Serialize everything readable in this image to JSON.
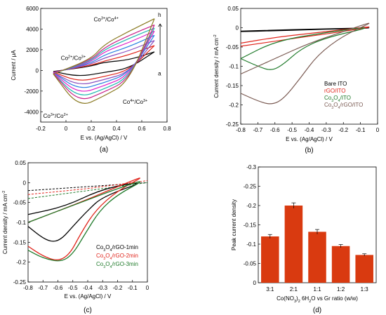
{
  "figure": {
    "panels": [
      "(a)",
      "(b)",
      "(c)",
      "(d)"
    ]
  },
  "colors": {
    "black": "#000000",
    "red": "#e0241b",
    "green": "#1f7a2a",
    "brown": "#7a5a52",
    "bar": "#d93a10",
    "blue": "#2a7fe0",
    "magenta": "#e020c8",
    "olive": "#8a7a22"
  },
  "chart_data": [
    {
      "panel": "a",
      "type": "line",
      "xlabel": "E vs. (Ag/AgCl) / V",
      "ylabel": "Current / μA",
      "xlim": [
        -0.2,
        0.8
      ],
      "ylim": [
        -5000,
        6000
      ],
      "xticks": [
        "-0.2",
        "0",
        "0.2",
        "0.4",
        "0.6",
        "0.8"
      ],
      "yticks": [
        "6000",
        "4000",
        "2000",
        "0",
        "-2000",
        "-4000"
      ],
      "annotations": [
        "Co3+/Co4+",
        "Co2+/Co3+",
        "Co4+/Co3+",
        "Co3+/Co2+",
        "h",
        "a"
      ],
      "series": [
        {
          "color": "#000000",
          "upper": [
            [
              -0.1,
              -100
            ],
            [
              0.2,
              400
            ],
            [
              0.3,
              800
            ],
            [
              0.5,
              1000
            ],
            [
              0.7,
              1800
            ]
          ],
          "lower": [
            [
              0.7,
              1800
            ],
            [
              0.5,
              200
            ],
            [
              0.3,
              -200
            ],
            [
              0.1,
              -600
            ],
            [
              -0.1,
              -100
            ]
          ]
        },
        {
          "color": "#e0241b",
          "upper": [
            [
              -0.1,
              -150
            ],
            [
              0.2,
              500
            ],
            [
              0.3,
              900
            ],
            [
              0.5,
              1500
            ],
            [
              0.7,
              2400
            ]
          ],
          "lower": [
            [
              0.7,
              2400
            ],
            [
              0.5,
              0
            ],
            [
              0.3,
              -600
            ],
            [
              0.1,
              -1100
            ],
            [
              -0.1,
              -150
            ]
          ]
        },
        {
          "color": "#8a4fc0",
          "upper": [
            [
              -0.1,
              -200
            ],
            [
              0.2,
              600
            ],
            [
              0.3,
              1200
            ],
            [
              0.5,
              1900
            ],
            [
              0.7,
              2900
            ]
          ],
          "lower": [
            [
              0.7,
              2900
            ],
            [
              0.5,
              -200
            ],
            [
              0.3,
              -900
            ],
            [
              0.1,
              -1500
            ],
            [
              -0.1,
              -200
            ]
          ]
        },
        {
          "color": "#2a7fe0",
          "upper": [
            [
              -0.1,
              -200
            ],
            [
              0.2,
              700
            ],
            [
              0.3,
              1500
            ],
            [
              0.5,
              2300
            ],
            [
              0.7,
              3400
            ]
          ],
          "lower": [
            [
              0.7,
              3400
            ],
            [
              0.5,
              -300
            ],
            [
              0.3,
              -1200
            ],
            [
              0.1,
              -1900
            ],
            [
              -0.1,
              -200
            ]
          ]
        },
        {
          "color": "#e020c8",
          "upper": [
            [
              -0.1,
              -250
            ],
            [
              0.2,
              800
            ],
            [
              0.3,
              1800
            ],
            [
              0.5,
              2700
            ],
            [
              0.7,
              3800
            ]
          ],
          "lower": [
            [
              0.7,
              3800
            ],
            [
              0.5,
              -500
            ],
            [
              0.3,
              -1500
            ],
            [
              0.1,
              -2300
            ],
            [
              -0.1,
              -250
            ]
          ]
        },
        {
          "color": "#20b8b0",
          "upper": [
            [
              -0.1,
              -300
            ],
            [
              0.2,
              900
            ],
            [
              0.3,
              2000
            ],
            [
              0.5,
              3100
            ],
            [
              0.7,
              4100
            ]
          ],
          "lower": [
            [
              0.7,
              4100
            ],
            [
              0.5,
              -700
            ],
            [
              0.3,
              -1800
            ],
            [
              0.1,
              -2700
            ],
            [
              -0.1,
              -300
            ]
          ]
        },
        {
          "color": "#c82088",
          "upper": [
            [
              -0.1,
              -300
            ],
            [
              0.2,
              1000
            ],
            [
              0.3,
              2200
            ],
            [
              0.5,
              3400
            ],
            [
              0.7,
              4400
            ]
          ],
          "lower": [
            [
              0.7,
              4400
            ],
            [
              0.5,
              -900
            ],
            [
              0.3,
              -2100
            ],
            [
              0.1,
              -3100
            ],
            [
              -0.1,
              -300
            ]
          ]
        },
        {
          "color": "#8a7a22",
          "upper": [
            [
              -0.1,
              -350
            ],
            [
              0.2,
              1100
            ],
            [
              0.3,
              2500
            ],
            [
              0.5,
              3800
            ],
            [
              0.7,
              5000
            ]
          ],
          "lower": [
            [
              0.7,
              5000
            ],
            [
              0.5,
              -1100
            ],
            [
              0.3,
              -2500
            ],
            [
              0.1,
              -3600
            ],
            [
              -0.1,
              -350
            ]
          ]
        }
      ]
    },
    {
      "panel": "b",
      "type": "line",
      "xlabel": "E vs. (Ag/AgCl) / V",
      "ylabel": "Current density / mA cm-2",
      "xlim": [
        -0.8,
        0
      ],
      "ylim": [
        -0.25,
        0.05
      ],
      "xticks": [
        "-0.8",
        "-0.7",
        "-0.6",
        "-0.5",
        "-0.4",
        "-0.3",
        "-0.2",
        "-0.1",
        "0"
      ],
      "yticks": [
        "0.05",
        "0",
        "-0.05",
        "-0.1",
        "-0.15",
        "-0.2",
        "-0.25"
      ],
      "legend": [
        "Bare ITO",
        "rGO/ITO",
        "Co3O4/ITO",
        "Co3O4/rGO/ITO"
      ],
      "series": [
        {
          "name": "Bare ITO",
          "color": "#000000",
          "points": [
            [
              -0.8,
              -0.01
            ],
            [
              -0.6,
              -0.008
            ],
            [
              -0.4,
              -0.005
            ],
            [
              -0.2,
              -0.003
            ],
            [
              0,
              0.0
            ],
            [
              -0.2,
              -0.002
            ],
            [
              -0.4,
              -0.004
            ],
            [
              -0.6,
              -0.006
            ],
            [
              -0.8,
              -0.009
            ]
          ]
        },
        {
          "name": "rGO/ITO",
          "color": "#e0241b",
          "points": [
            [
              -0.8,
              -0.048
            ],
            [
              -0.6,
              -0.035
            ],
            [
              -0.4,
              -0.022
            ],
            [
              -0.2,
              -0.01
            ],
            [
              0,
              0.005
            ],
            [
              -0.2,
              -0.005
            ],
            [
              -0.4,
              -0.015
            ],
            [
              -0.6,
              -0.025
            ],
            [
              -0.8,
              -0.04
            ]
          ]
        },
        {
          "name": "Co3O4/ITO",
          "color": "#1f7a2a",
          "points": [
            [
              -0.8,
              -0.08
            ],
            [
              -0.7,
              -0.1
            ],
            [
              -0.62,
              -0.112
            ],
            [
              -0.55,
              -0.095
            ],
            [
              -0.45,
              -0.055
            ],
            [
              -0.3,
              -0.025
            ],
            [
              0,
              0.005
            ],
            [
              -0.3,
              -0.012
            ],
            [
              -0.6,
              -0.035
            ],
            [
              -0.8,
              -0.08
            ]
          ]
        },
        {
          "name": "Co3O4/rGO/ITO",
          "color": "#7a5a52",
          "points": [
            [
              -0.8,
              -0.17
            ],
            [
              -0.7,
              -0.19
            ],
            [
              -0.62,
              -0.2
            ],
            [
              -0.55,
              -0.185
            ],
            [
              -0.45,
              -0.13
            ],
            [
              -0.35,
              -0.07
            ],
            [
              -0.2,
              -0.02
            ],
            [
              0,
              0.02
            ],
            [
              -0.2,
              -0.01
            ],
            [
              -0.4,
              -0.04
            ],
            [
              -0.6,
              -0.08
            ],
            [
              -0.8,
              -0.12
            ]
          ]
        }
      ]
    },
    {
      "panel": "c",
      "type": "line",
      "xlabel": "E vs. (Ag/AgCl) / V",
      "ylabel": "Current density / mA cm-2",
      "xlim": [
        -0.8,
        0
      ],
      "ylim": [
        -0.25,
        0.05
      ],
      "xticks": [
        "-0.8",
        "-0.7",
        "-0.6",
        "-0.5",
        "-0.4",
        "-0.3",
        "-0.2",
        "-0.1",
        "0"
      ],
      "yticks": [
        "0.05",
        "0",
        "-0.05",
        "-0.1",
        "-0.15",
        "-0.2",
        "-0.25"
      ],
      "legend": [
        "Co3O4/rGO-1min",
        "Co3O4/rGO-2min",
        "Co3O4/rGO-3min"
      ],
      "series": [
        {
          "name": "Co3O4/rGO-1min",
          "color": "#000000",
          "points": [
            [
              -0.8,
              -0.11
            ],
            [
              -0.7,
              -0.14
            ],
            [
              -0.63,
              -0.15
            ],
            [
              -0.57,
              -0.14
            ],
            [
              -0.5,
              -0.11
            ],
            [
              -0.4,
              -0.07
            ],
            [
              -0.3,
              -0.035
            ],
            [
              0,
              0.005
            ],
            [
              -0.3,
              -0.015
            ],
            [
              -0.55,
              -0.06
            ],
            [
              -0.8,
              -0.08
            ]
          ]
        },
        {
          "name": "Co3O4/rGO-2min",
          "color": "#e0241b",
          "points": [
            [
              -0.8,
              -0.16
            ],
            [
              -0.7,
              -0.185
            ],
            [
              -0.6,
              -0.198
            ],
            [
              -0.52,
              -0.18
            ],
            [
              -0.45,
              -0.13
            ],
            [
              -0.35,
              -0.07
            ],
            [
              -0.2,
              -0.02
            ],
            [
              0,
              0.02
            ],
            [
              -0.2,
              -0.01
            ],
            [
              -0.45,
              -0.05
            ],
            [
              -0.8,
              -0.1
            ]
          ]
        },
        {
          "name": "Co3O4/rGO-3min",
          "color": "#1f7a2a",
          "points": [
            [
              -0.8,
              -0.17
            ],
            [
              -0.7,
              -0.19
            ],
            [
              -0.58,
              -0.2
            ],
            [
              -0.5,
              -0.18
            ],
            [
              -0.42,
              -0.13
            ],
            [
              -0.32,
              -0.07
            ],
            [
              -0.2,
              -0.03
            ],
            [
              0,
              0.01
            ],
            [
              -0.2,
              -0.015
            ],
            [
              -0.45,
              -0.05
            ],
            [
              -0.8,
              -0.1
            ]
          ]
        }
      ],
      "dashed": [
        {
          "color": "#000000",
          "points": [
            [
              -0.8,
              -0.02
            ],
            [
              -0.4,
              -0.01
            ],
            [
              0,
              0.0
            ]
          ]
        },
        {
          "color": "#e0241b",
          "points": [
            [
              -0.8,
              -0.03
            ],
            [
              -0.4,
              -0.015
            ],
            [
              0,
              0.005
            ]
          ]
        },
        {
          "color": "#1f7a2a",
          "points": [
            [
              -0.8,
              -0.04
            ],
            [
              -0.4,
              -0.02
            ],
            [
              0,
              0.0
            ]
          ]
        }
      ]
    },
    {
      "panel": "d",
      "type": "bar",
      "xlabel": "Co(NO3)2 6H2O vs Gr ratio (w/w)",
      "ylabel": "Peak current density",
      "categories": [
        "3:1",
        "2:1",
        "1:1",
        "1:2",
        "1:3"
      ],
      "values": [
        -0.12,
        -0.2,
        -0.132,
        -0.095,
        -0.072
      ],
      "errors": [
        0.005,
        0.007,
        0.006,
        0.004,
        0.003
      ],
      "ylim": [
        0,
        -0.3
      ],
      "yticks": [
        "-0.3",
        "-0.25",
        "-0.2",
        "-0.15",
        "-0.1",
        "-0.05",
        "0"
      ]
    }
  ]
}
